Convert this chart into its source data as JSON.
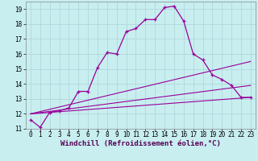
{
  "xlabel": "Windchill (Refroidissement éolien,°C)",
  "bg_color": "#c8eef0",
  "grid_color": "#b0d8dc",
  "line_color": "#990099",
  "x_ticks": [
    0,
    1,
    2,
    3,
    4,
    5,
    6,
    7,
    8,
    9,
    10,
    11,
    12,
    13,
    14,
    15,
    16,
    17,
    18,
    19,
    20,
    21,
    22,
    23
  ],
  "y_ticks": [
    11,
    12,
    13,
    14,
    15,
    16,
    17,
    18,
    19
  ],
  "xlim": [
    -0.5,
    23.5
  ],
  "ylim": [
    11.0,
    19.5
  ],
  "line1_x": [
    0,
    1,
    2,
    3,
    4,
    5,
    6,
    7,
    8,
    9,
    10,
    11,
    12,
    13,
    14,
    15,
    16,
    17,
    18,
    19,
    20,
    21,
    22,
    23
  ],
  "line1_y": [
    11.6,
    11.1,
    12.1,
    12.2,
    12.4,
    13.5,
    13.5,
    15.1,
    16.1,
    16.0,
    17.5,
    17.7,
    18.3,
    18.3,
    19.1,
    19.2,
    18.2,
    16.0,
    15.6,
    14.6,
    14.3,
    13.9,
    13.1,
    13.1
  ],
  "line2_x": [
    0,
    23
  ],
  "line2_y": [
    12.0,
    15.5
  ],
  "line3_x": [
    0,
    23
  ],
  "line3_y": [
    12.0,
    13.9
  ],
  "line4_x": [
    0,
    23
  ],
  "line4_y": [
    12.0,
    13.1
  ],
  "tick_fontsize": 5.5,
  "xlabel_fontsize": 6.5
}
